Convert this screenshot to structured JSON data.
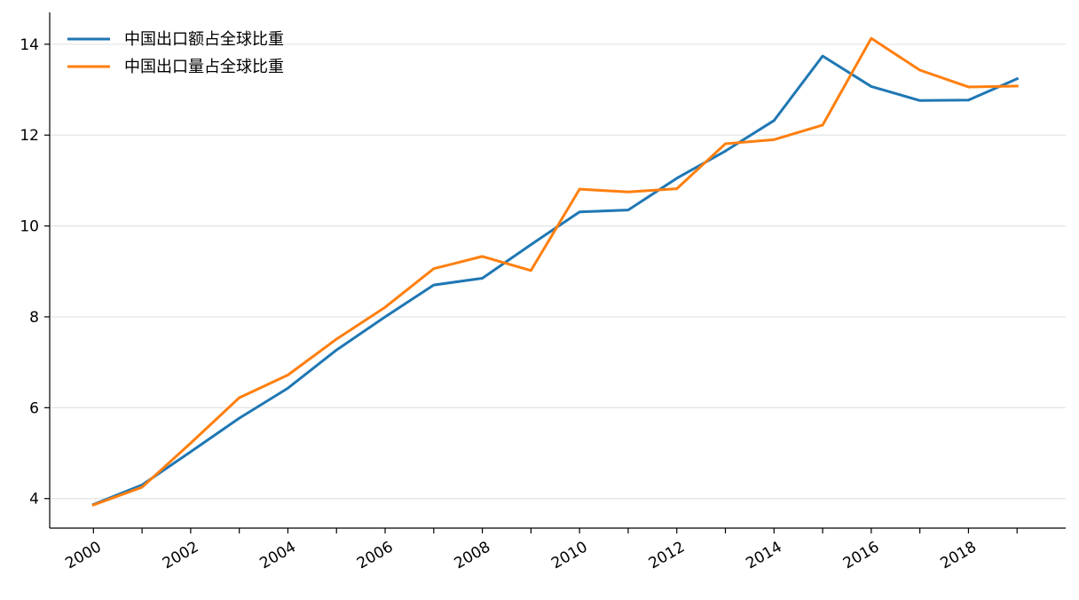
{
  "chart_data": {
    "type": "line",
    "title": "",
    "xlabel": "",
    "ylabel": "",
    "x": [
      2000,
      2001,
      2002,
      2003,
      2004,
      2005,
      2006,
      2007,
      2008,
      2009,
      2010,
      2011,
      2012,
      2013,
      2014,
      2015,
      2016,
      2017,
      2018,
      2019
    ],
    "x_tick_labels": [
      "2000",
      "2002",
      "2004",
      "2006",
      "2008",
      "2010",
      "2012",
      "2014",
      "2016",
      "2018"
    ],
    "y_ticks": [
      4,
      6,
      8,
      10,
      12,
      14
    ],
    "xlim": [
      1999.1,
      2020.0
    ],
    "ylim": [
      3.35,
      14.7
    ],
    "grid": "horizontal",
    "legend_position": "top-left",
    "series": [
      {
        "name": "中国出口额占全球比重",
        "color": "#1f77b4",
        "values": [
          3.87,
          4.3,
          5.03,
          5.77,
          6.43,
          7.27,
          8.0,
          8.7,
          8.85,
          9.59,
          10.31,
          10.35,
          11.05,
          11.65,
          12.32,
          13.74,
          13.07,
          12.76,
          12.77,
          13.24
        ]
      },
      {
        "name": "中国出口量占全球比重",
        "color": "#ff7f0e",
        "values": [
          3.86,
          4.25,
          5.22,
          6.22,
          6.72,
          7.51,
          8.21,
          9.06,
          9.33,
          9.02,
          10.81,
          10.75,
          10.82,
          11.81,
          11.9,
          12.22,
          14.13,
          13.43,
          13.06,
          13.08
        ]
      }
    ]
  }
}
